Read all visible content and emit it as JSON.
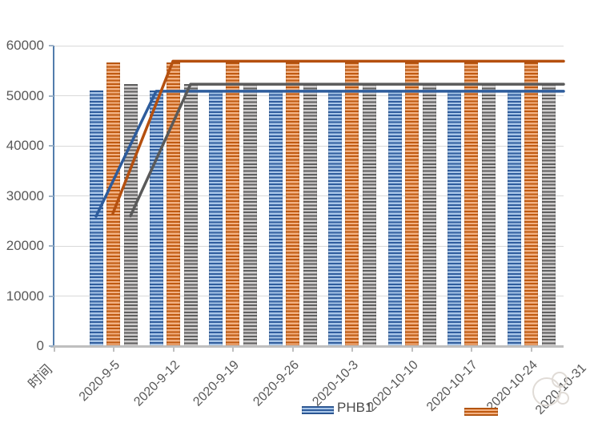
{
  "chart_data": {
    "type": "combo-bar-line",
    "title": "",
    "x_axis_first_tick_label": "时间",
    "categories": [
      "时间",
      "2020-9-5",
      "2020-9-12",
      "2020-9-19",
      "2020-9-26",
      "2020-10-3",
      "2020-10-10",
      "2020-10-17",
      "2020-10-24"
    ],
    "clipped_next_category": "2020-10-31",
    "ylim": [
      0,
      60000
    ],
    "ytick_step": 10000,
    "y_tick_labels": [
      "0",
      "10000",
      "20000",
      "30000",
      "40000",
      "50000",
      "60000"
    ],
    "grid": true,
    "legend_position": "bottom",
    "bar_series": [
      {
        "name": "PHB1",
        "color": "blue",
        "values": [
          null,
          51000,
          51000,
          51000,
          51000,
          51000,
          51000,
          51000,
          51000
        ]
      },
      {
        "name": "",
        "color": "orange",
        "values": [
          null,
          56700,
          56700,
          56700,
          56700,
          56700,
          56700,
          56700,
          56700
        ]
      },
      {
        "name": "",
        "color": "gray",
        "values": [
          null,
          52400,
          52400,
          52400,
          52400,
          52400,
          52400,
          52400,
          52400
        ]
      }
    ],
    "line_series": [
      {
        "name": "",
        "color": "blue",
        "values": [
          null,
          25900,
          50900,
          50900,
          50900,
          50900,
          50900,
          50900,
          50900
        ]
      },
      {
        "name": "",
        "color": "orange",
        "values": [
          null,
          26500,
          56900,
          56900,
          56900,
          56900,
          56900,
          56900,
          56900
        ]
      },
      {
        "name": "",
        "color": "gray",
        "values": [
          null,
          26000,
          52300,
          52300,
          52300,
          52300,
          52300,
          52300,
          52300
        ]
      }
    ],
    "legend": [
      {
        "label": "PHB1",
        "swatch": "blue-striped-bar"
      },
      {
        "label": "",
        "swatch": "orange-striped-bar"
      }
    ],
    "colors": {
      "blue_dark": "#2F5D9E",
      "blue_light": "#A9C6E8",
      "orange_dark": "#C05A11",
      "orange_light": "#F2B183",
      "gray_dark": "#5F5F5F",
      "gray_light": "#D0CECE",
      "line_blue": "#2D5C9C",
      "line_orange": "#B5500F",
      "line_gray": "#5A5A5A",
      "axis_line_blue": "#527CAC",
      "axis_line_gray": "#BFBFBF",
      "gridline": "#D9D9D9",
      "label_text": "#595959"
    }
  }
}
